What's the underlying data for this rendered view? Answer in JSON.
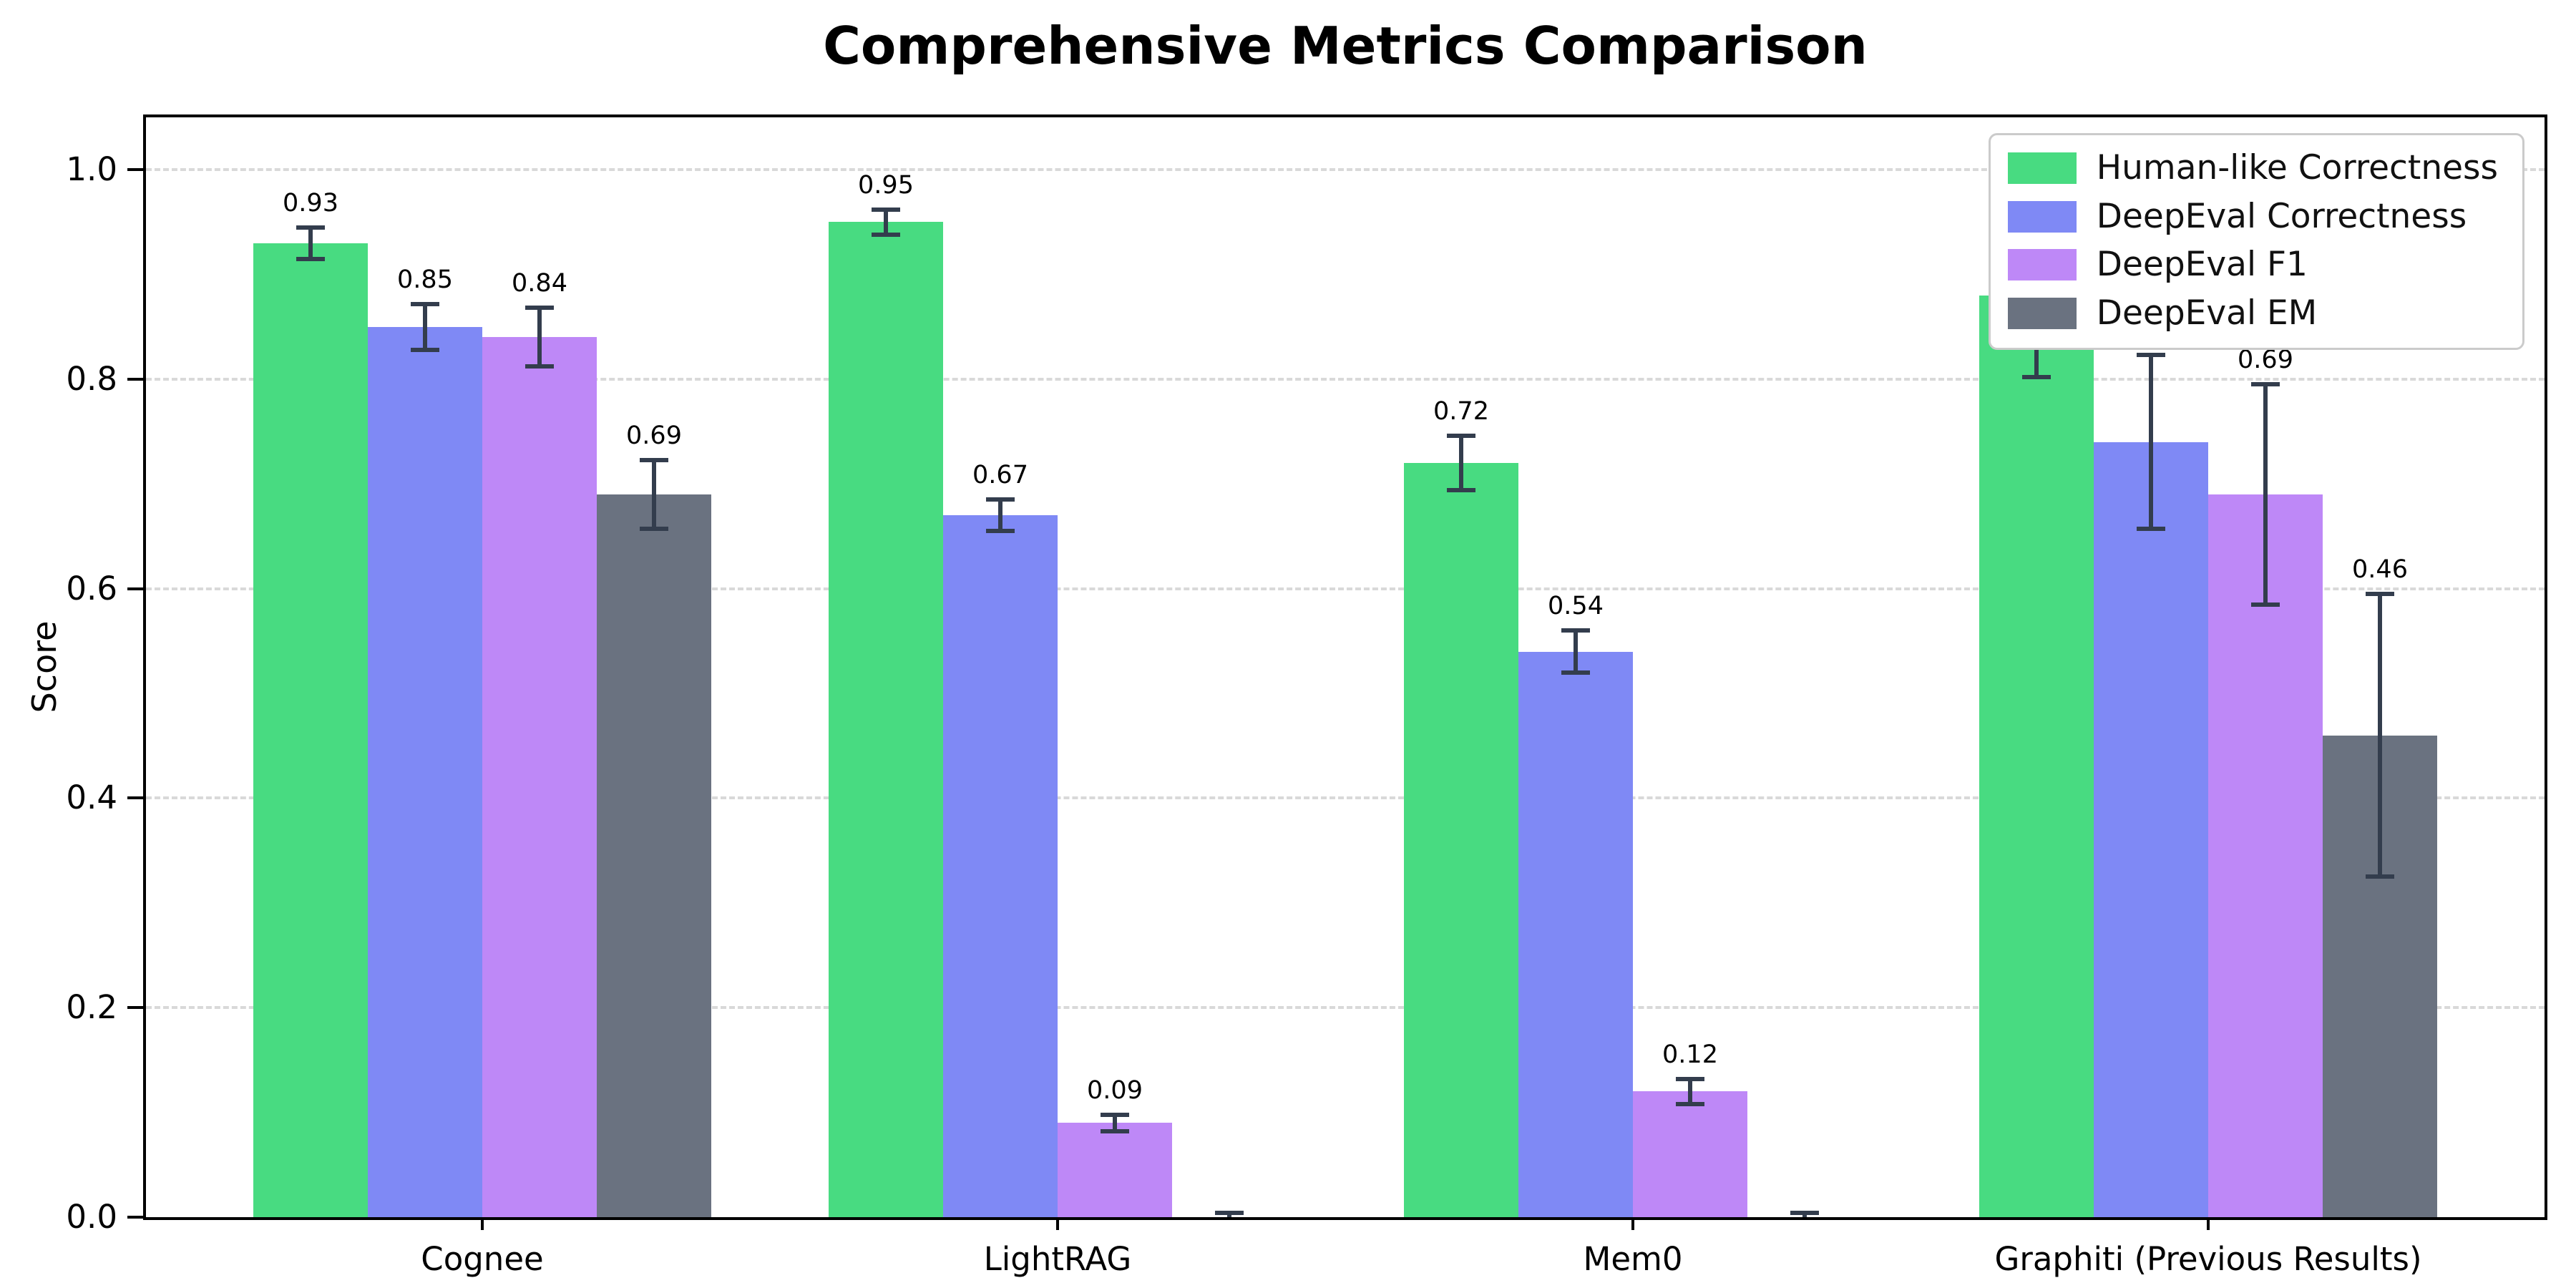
{
  "figure": {
    "title": "Comprehensive Metrics Comparison",
    "background_color": "#ffffff"
  },
  "chart_data": {
    "type": "bar",
    "title": "Comprehensive Metrics Comparison",
    "xlabel": "",
    "ylabel": "Score",
    "ylim": [
      0,
      1.05
    ],
    "yticks": [
      {
        "value": 0.0,
        "label": "0.0"
      },
      {
        "value": 0.2,
        "label": "0.2"
      },
      {
        "value": 0.4,
        "label": "0.4"
      },
      {
        "value": 0.6,
        "label": "0.6"
      },
      {
        "value": 0.8,
        "label": "0.8"
      },
      {
        "value": 1.0,
        "label": "1.0"
      }
    ],
    "grid": "horizontal-dashed",
    "legend_position": "upper right",
    "categories": [
      "Cognee",
      "LightRAG",
      "Mem0",
      "Graphiti (Previous Results)"
    ],
    "series": [
      {
        "name": "Human-like Correctness",
        "color": "#48db81",
        "values": [
          0.93,
          0.95,
          0.72,
          0.88
        ],
        "errors": [
          0.015,
          0.012,
          0.026,
          0.078
        ],
        "labels": [
          "0.93",
          "0.95",
          "0.72",
          "0.88"
        ]
      },
      {
        "name": "DeepEval Correctness",
        "color": "#7f89f5",
        "values": [
          0.85,
          0.67,
          0.54,
          0.74
        ],
        "errors": [
          0.022,
          0.015,
          0.02,
          0.083
        ],
        "labels": [
          "0.85",
          "0.67",
          "0.54",
          "0.74"
        ]
      },
      {
        "name": "DeepEval F1",
        "color": "#be88f7",
        "values": [
          0.84,
          0.09,
          0.12,
          0.69
        ],
        "errors": [
          0.028,
          0.008,
          0.012,
          0.105
        ],
        "labels": [
          "0.84",
          "0.09",
          "0.12",
          "0.69"
        ]
      },
      {
        "name": "DeepEval EM",
        "color": "#6a7280",
        "values": [
          0.69,
          0.0,
          0.0,
          0.46
        ],
        "errors": [
          0.033,
          0.004,
          0.004,
          0.135
        ],
        "labels": [
          "0.69",
          "",
          "",
          "0.46"
        ]
      }
    ],
    "error_bar_color": "#333d4d",
    "gridline_color": "#d9d9d9"
  }
}
